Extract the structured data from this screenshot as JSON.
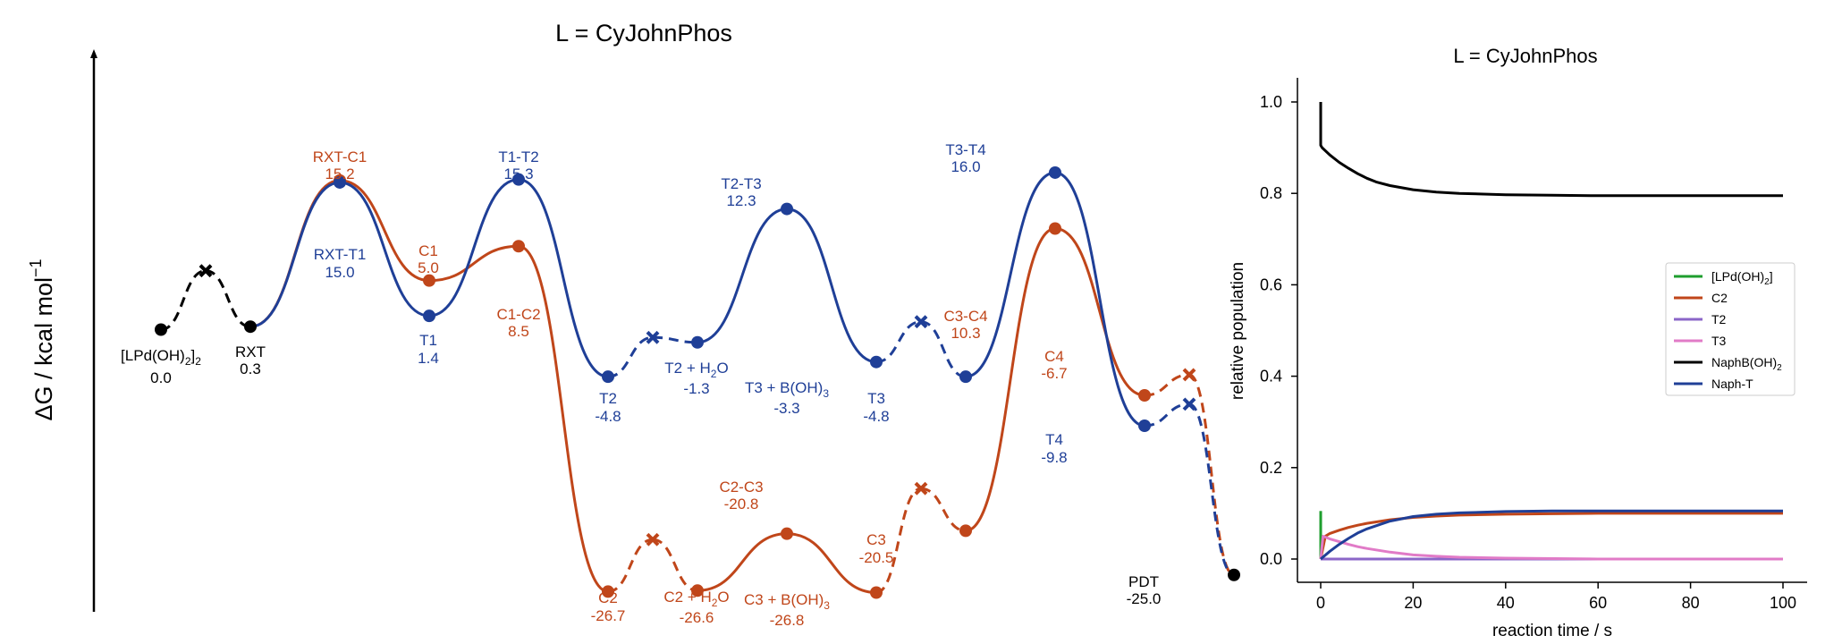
{
  "colors": {
    "orange": "#C0461A",
    "blue": "#1F3F97",
    "black": "#000000",
    "green": "#1E9E2E",
    "purple": "#8B66C8",
    "pink": "#E17BC7"
  },
  "chart_data": [
    {
      "type": "energy-profile",
      "title": "L = CyJohnPhos",
      "ylabel": "ΔG / kcal mol",
      "ylabel_sup": "−1",
      "states": {
        "S0": {
          "name": "[LPd(OH)",
          "name_sub": "2",
          "name_tail": "]",
          "name_sub2": "2",
          "value": "0.0",
          "dg": 0.0,
          "color": "black"
        },
        "X1": {
          "dg": 6.0,
          "color": "black"
        },
        "RXT": {
          "name": "RXT",
          "value": "0.3",
          "dg": 0.3,
          "color": "black"
        },
        "RC1": {
          "name": "RXT-C1",
          "value": "15.2",
          "dg": 15.2,
          "color": "orange"
        },
        "RT1": {
          "name": "RXT-T1",
          "value": "15.0",
          "dg": 15.0,
          "color": "blue"
        },
        "C1": {
          "name": "C1",
          "value": "5.0",
          "dg": 5.0,
          "color": "orange"
        },
        "T1": {
          "name": "T1",
          "value": "1.4",
          "dg": 1.4,
          "color": "blue"
        },
        "C12": {
          "name": "C1-C2",
          "value": "8.5",
          "dg": 8.5,
          "color": "orange"
        },
        "T12": {
          "name": "T1-T2",
          "value": "15.3",
          "dg": 15.3,
          "color": "blue"
        },
        "C2": {
          "name": "C2",
          "value": "-26.7",
          "dg": -26.7,
          "color": "orange"
        },
        "T2": {
          "name": "T2",
          "value": "-4.8",
          "dg": -4.8,
          "color": "blue"
        },
        "C2W": {
          "name": "C2 + H",
          "name_sub": "2",
          "name_tail": "O",
          "value": "-26.6",
          "dg": -26.6,
          "color": "orange"
        },
        "T2W": {
          "name": "T2 + H",
          "name_sub": "2",
          "name_tail": "O",
          "value": "-1.3",
          "dg": -1.3,
          "color": "blue"
        },
        "C23": {
          "name": "C2-C3",
          "value": "-20.8",
          "dg": -20.8,
          "color": "orange"
        },
        "T23": {
          "name": "T2-T3",
          "value": "12.3",
          "dg": 12.3,
          "color": "blue"
        },
        "C3B": {
          "name": "C3 + B(OH)",
          "name_sub": "3",
          "value": "-26.8",
          "dg": -26.8,
          "color": "orange"
        },
        "T3B": {
          "name": "T3 + B(OH)",
          "name_sub": "3",
          "value": "-3.3",
          "dg": -3.3,
          "color": "blue"
        },
        "C3": {
          "name": "C3",
          "value": "-20.5",
          "dg": -20.5,
          "color": "orange"
        },
        "T3": {
          "name": "T3",
          "value": "-4.8",
          "dg": -4.8,
          "color": "blue"
        },
        "C34": {
          "name": "C3-C4",
          "value": "10.3",
          "dg": 10.3,
          "color": "orange"
        },
        "T34": {
          "name": "T3-T4",
          "value": "16.0",
          "dg": 16.0,
          "color": "blue"
        },
        "C4": {
          "name": "C4",
          "value": "-6.7",
          "dg": -6.7,
          "color": "orange"
        },
        "T4": {
          "name": "T4",
          "value": "-9.8",
          "dg": -9.8,
          "color": "blue"
        },
        "PDT": {
          "name": "PDT",
          "value": "-25.0",
          "dg": -25.0,
          "color": "black"
        }
      },
      "crossings": [
        {
          "dg": 6.0,
          "color": "black"
        },
        {
          "dg": -0.8,
          "color": "blue"
        },
        {
          "dg": -21.4,
          "color": "orange"
        },
        {
          "dg": 0.8,
          "color": "blue"
        },
        {
          "dg": -16.2,
          "color": "orange"
        },
        {
          "dg": -4.6,
          "color": "orange"
        },
        {
          "dg": -7.6,
          "color": "blue"
        }
      ]
    },
    {
      "type": "line",
      "title": "L = CyJohnPhos",
      "xlabel": "reaction time / s",
      "ylabel": "relative population",
      "xlim": [
        0,
        100
      ],
      "ylim": [
        0,
        1.0
      ],
      "x_ticks": [
        "0",
        "20",
        "40",
        "60",
        "80",
        "100"
      ],
      "y_ticks": [
        "0.0",
        "0.2",
        "0.4",
        "0.6",
        "0.8",
        "1.0"
      ],
      "legend_position": "right",
      "series": [
        {
          "name": "[LPd(OH)",
          "name_sub": "2",
          "name_tail": "]",
          "color": "green",
          "x": [
            0,
            0
          ],
          "y": [
            0.105,
            0
          ]
        },
        {
          "name": "C2",
          "color": "orange",
          "x": [
            0,
            1,
            2,
            4,
            6,
            8,
            10,
            15,
            20,
            25,
            30,
            40,
            50,
            60,
            80,
            100
          ],
          "y": [
            0.0,
            0.05,
            0.056,
            0.063,
            0.069,
            0.074,
            0.078,
            0.086,
            0.091,
            0.094,
            0.096,
            0.098,
            0.099,
            0.1,
            0.1,
            0.1
          ]
        },
        {
          "name": "T2",
          "color": "purple",
          "x": [
            0,
            100
          ],
          "y": [
            0.0,
            0.0
          ]
        },
        {
          "name": "T3",
          "color": "pink",
          "x": [
            0,
            0.5,
            1,
            2,
            4,
            6,
            8,
            10,
            15,
            20,
            25,
            30,
            40,
            60,
            100
          ],
          "y": [
            0.0,
            0.05,
            0.048,
            0.044,
            0.038,
            0.032,
            0.027,
            0.023,
            0.015,
            0.009,
            0.006,
            0.004,
            0.002,
            0.0,
            0.0
          ]
        },
        {
          "name": "NaphB(OH)",
          "name_sub": "2",
          "color": "black",
          "x": [
            0,
            0,
            0.3,
            2,
            4,
            6,
            8,
            10,
            12,
            15,
            20,
            25,
            30,
            40,
            50,
            60,
            80,
            100
          ],
          "y": [
            1.0,
            0.905,
            0.9,
            0.884,
            0.868,
            0.855,
            0.843,
            0.833,
            0.825,
            0.817,
            0.808,
            0.803,
            0.8,
            0.797,
            0.796,
            0.795,
            0.795,
            0.795
          ]
        },
        {
          "name": "Naph-T",
          "color": "blue",
          "x": [
            0,
            2,
            4,
            6,
            8,
            10,
            15,
            20,
            25,
            30,
            40,
            50,
            60,
            80,
            100
          ],
          "y": [
            0.0,
            0.017,
            0.032,
            0.045,
            0.057,
            0.066,
            0.083,
            0.093,
            0.098,
            0.101,
            0.104,
            0.105,
            0.105,
            0.105,
            0.105
          ]
        }
      ]
    }
  ]
}
